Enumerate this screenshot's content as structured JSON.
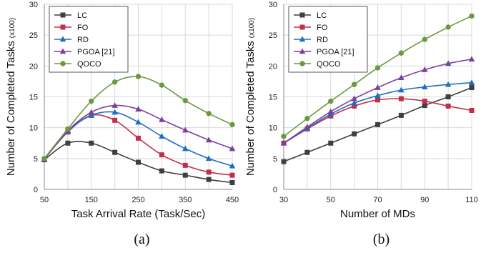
{
  "chart_data": [
    {
      "type": "line",
      "caption": "(a)",
      "xlabel": "Task Arrival Rate (Task/Sec)",
      "ylabel": "Number of Completed Tasks",
      "ylabel_units": "(x100)",
      "xlim": [
        50,
        450
      ],
      "ylim": [
        0,
        30
      ],
      "xticks": [
        "50",
        "150",
        "250",
        "350",
        "450"
      ],
      "yticks": [
        "0",
        "5",
        "10",
        "15",
        "20",
        "25",
        "30"
      ],
      "grid": true,
      "legend_position": "top-left",
      "x": [
        50,
        100,
        150,
        200,
        250,
        300,
        350,
        400,
        450
      ],
      "series": [
        {
          "name": "LC",
          "color": "#3f3f3f",
          "marker": "square",
          "values": [
            4.8,
            7.5,
            7.5,
            6.0,
            4.4,
            3.0,
            2.3,
            1.6,
            1.1
          ]
        },
        {
          "name": "FO",
          "color": "#c0304a",
          "marker": "square",
          "values": [
            4.9,
            9.3,
            12.0,
            11.2,
            8.3,
            5.6,
            3.9,
            2.8,
            2.3
          ]
        },
        {
          "name": "RD",
          "color": "#1f6fbe",
          "marker": "triangle",
          "values": [
            4.9,
            9.4,
            12.0,
            12.5,
            10.9,
            8.6,
            6.6,
            5.0,
            3.8
          ]
        },
        {
          "name": "PGOA [21]",
          "color": "#7d3f9f",
          "marker": "triangle",
          "values": [
            4.9,
            9.5,
            12.5,
            13.6,
            13.0,
            11.3,
            9.6,
            8.0,
            6.6
          ]
        },
        {
          "name": "QOCO",
          "color": "#6a9a3e",
          "marker": "circle",
          "values": [
            5.0,
            9.8,
            14.3,
            17.4,
            18.3,
            16.9,
            14.4,
            12.3,
            10.5
          ]
        }
      ]
    },
    {
      "type": "line",
      "caption": "(b)",
      "xlabel": "Number of MDs",
      "ylabel": "Number of Completed Tasks",
      "ylabel_units": "(x100)",
      "xlim": [
        30,
        110
      ],
      "ylim": [
        0,
        30
      ],
      "xticks": [
        "30",
        "50",
        "70",
        "90",
        "110"
      ],
      "yticks": [
        "0",
        "5",
        "10",
        "15",
        "20",
        "25",
        "30"
      ],
      "grid": true,
      "legend_position": "top-left",
      "x": [
        30,
        40,
        50,
        60,
        70,
        80,
        90,
        100,
        110
      ],
      "series": [
        {
          "name": "LC",
          "color": "#3f3f3f",
          "marker": "square",
          "values": [
            4.5,
            6.0,
            7.5,
            9.0,
            10.5,
            12.0,
            13.6,
            15.0,
            16.5
          ]
        },
        {
          "name": "FO",
          "color": "#c0304a",
          "marker": "square",
          "values": [
            7.5,
            9.8,
            11.9,
            13.5,
            14.5,
            14.7,
            14.3,
            13.5,
            12.8
          ]
        },
        {
          "name": "RD",
          "color": "#1f6fbe",
          "marker": "triangle",
          "values": [
            7.5,
            9.9,
            12.2,
            14.0,
            15.2,
            16.1,
            16.6,
            17.0,
            17.3
          ]
        },
        {
          "name": "PGOA [21]",
          "color": "#7d3f9f",
          "marker": "triangle",
          "values": [
            7.5,
            10.1,
            12.6,
            14.7,
            16.5,
            18.1,
            19.4,
            20.4,
            21.1
          ]
        },
        {
          "name": "QOCO",
          "color": "#6a9a3e",
          "marker": "circle",
          "values": [
            8.6,
            11.5,
            14.3,
            17.0,
            19.7,
            22.1,
            24.3,
            26.3,
            28.1
          ]
        }
      ]
    }
  ]
}
